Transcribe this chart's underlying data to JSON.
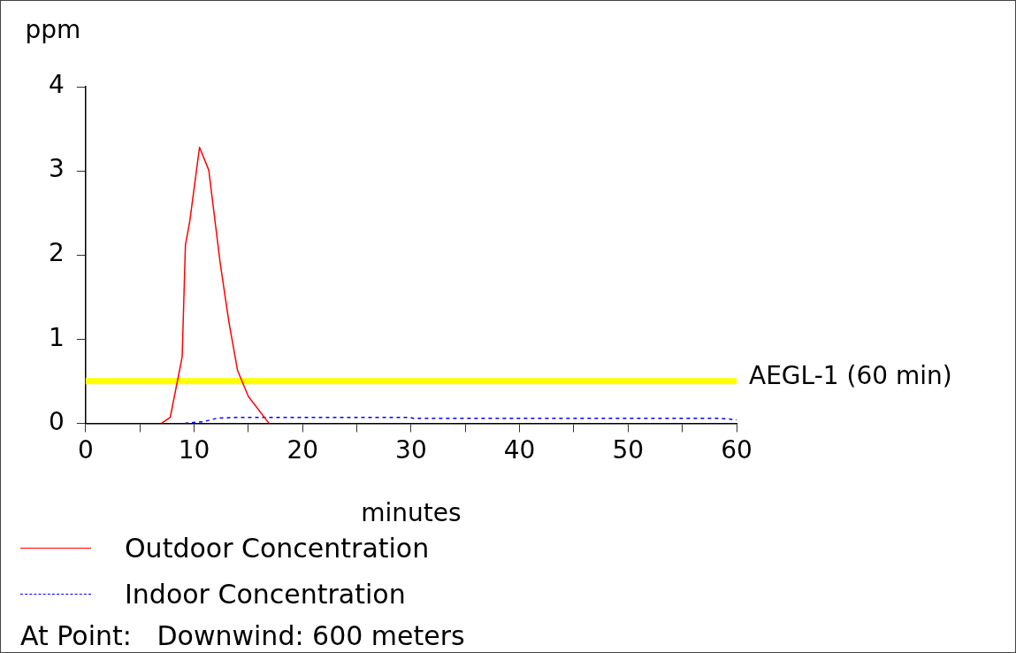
{
  "chart_data": {
    "type": "line",
    "xlabel": "minutes",
    "ylabel": "ppm",
    "xlim": [
      0,
      60
    ],
    "ylim": [
      0,
      4
    ],
    "xticks": [
      0,
      {
        "value": 5,
        "label": null
      },
      10,
      {
        "value": 15,
        "label": null
      },
      20,
      {
        "value": 25,
        "label": null
      },
      30,
      {
        "value": 35,
        "label": null
      },
      40,
      {
        "value": 45,
        "label": null
      },
      50,
      {
        "value": 55,
        "label": null
      },
      60
    ],
    "yticks": [
      0,
      1,
      2,
      3,
      4
    ],
    "grid": false,
    "legend": "bottom",
    "marker": "none",
    "series": [
      {
        "name": "Outdoor Concentration",
        "color": "#ff0000",
        "line_style": "solid",
        "x": [
          7,
          7.8,
          8.9,
          9.2,
          9.6,
          10.5,
          11.35,
          12.4,
          13.2,
          14,
          15,
          16.9
        ],
        "values": [
          0,
          0.07,
          0.79,
          2.12,
          2.4,
          3.28,
          3.01,
          1.91,
          1.21,
          0.63,
          0.32,
          0
        ]
      },
      {
        "name": "Indoor Concentration",
        "color": "#0000ff",
        "line_style": "dashed",
        "x": [
          9.15,
          10.9,
          12.1,
          13.7,
          29.9,
          30.2,
          58.1,
          59.4,
          60
        ],
        "values": [
          0,
          0.02,
          0.06,
          0.07,
          0.07,
          0.06,
          0.06,
          0.05,
          0.04
        ]
      }
    ],
    "ref_lines": [
      {
        "axis": "y",
        "value": 0.5,
        "label": "AEGL-1 (60 min)",
        "color": "#ffff00"
      }
    ],
    "annotations": [
      "At Point:   Downwind: 600 meters"
    ]
  }
}
